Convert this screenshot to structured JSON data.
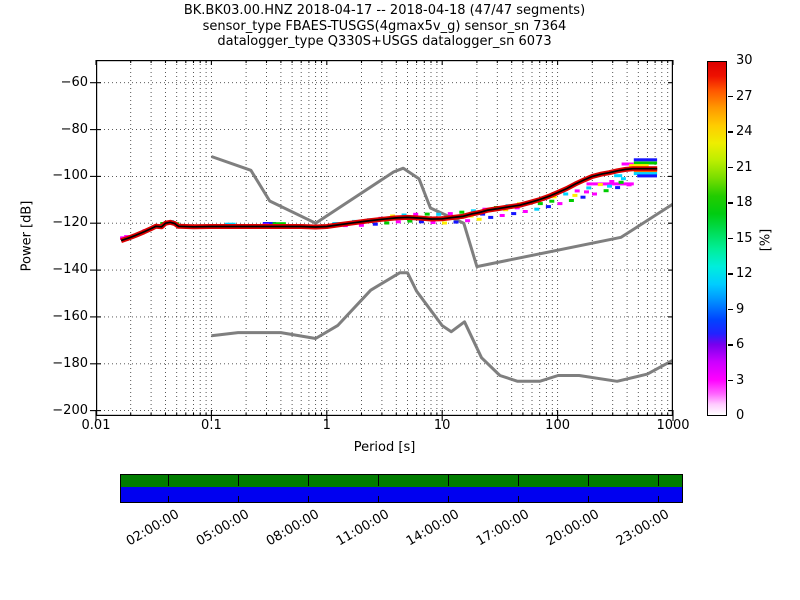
{
  "title": {
    "line1": "BK.BK03.00.HNZ   2018-04-17 -- 2018-04-18  (47/47 segments)",
    "line2": "sensor_type FBAES-TUSGS(4gmax5v_g) sensor_sn 7364",
    "line3": "datalogger_type Q330S+USGS datalogger_sn 6073"
  },
  "chart_data": {
    "type": "heatmap",
    "subtype": "obspy-ppsd-probability-histogram",
    "xlabel": "Period [s]",
    "ylabel": "Power [dB]",
    "x_scale": "log",
    "x_range": [
      0.01,
      1000
    ],
    "y_range_db": [
      -200,
      -60
    ],
    "grid": "dotted-major-and-log-minor",
    "x_ticks": {
      "values": [
        0.01,
        0.1,
        1,
        10,
        100,
        1000
      ],
      "labels": [
        "0.01",
        "0.1",
        "1",
        "10",
        "100",
        "1000"
      ]
    },
    "y_ticks": {
      "values": [
        -60,
        -80,
        -100,
        -120,
        -140,
        -160,
        -180,
        -200
      ],
      "labels": [
        "−60",
        "−80",
        "−100",
        "−120",
        "−140",
        "−160",
        "−180",
        "−200"
      ]
    },
    "colorbar": {
      "label": "[%]",
      "min": 0,
      "max": 30,
      "tick_values": [
        0,
        3,
        6,
        9,
        12,
        15,
        18,
        21,
        24,
        27,
        30
      ],
      "tick_labels": [
        "0",
        "3",
        "6",
        "9",
        "12",
        "15",
        "18",
        "21",
        "24",
        "27",
        "30"
      ],
      "gradient_stops": [
        [
          0,
          "#ffffff"
        ],
        [
          3,
          "#ffccff"
        ],
        [
          6,
          "#ff66ff"
        ],
        [
          10,
          "#ff00ff"
        ],
        [
          15,
          "#cc00ff"
        ],
        [
          20,
          "#7700ee"
        ],
        [
          23,
          "#2222ff"
        ],
        [
          27,
          "#0044ff"
        ],
        [
          33,
          "#0099ff"
        ],
        [
          37,
          "#00ccff"
        ],
        [
          42,
          "#00eedd"
        ],
        [
          47,
          "#00ee99"
        ],
        [
          52,
          "#00dd55"
        ],
        [
          57,
          "#00cc11"
        ],
        [
          62,
          "#22cc00"
        ],
        [
          67,
          "#77dd00"
        ],
        [
          72,
          "#bbee00"
        ],
        [
          77,
          "#eeee00"
        ],
        [
          82,
          "#ffcc00"
        ],
        [
          87,
          "#ff9900"
        ],
        [
          92,
          "#ff5500"
        ],
        [
          96,
          "#ee1100"
        ],
        [
          100,
          "#dd0000"
        ]
      ]
    },
    "noise_models": {
      "color": "#7f7f7f",
      "line_width": 3,
      "nhnm": [
        [
          0.1,
          -91.5
        ],
        [
          0.22,
          -97.4
        ],
        [
          0.32,
          -110.5
        ],
        [
          0.8,
          -120.0
        ],
        [
          3.8,
          -98.1
        ],
        [
          4.6,
          -96.5
        ],
        [
          6.3,
          -101.0
        ],
        [
          7.9,
          -113.5
        ],
        [
          15.4,
          -120.0
        ],
        [
          20,
          -138.5
        ],
        [
          354.8,
          -126.0
        ],
        [
          1000,
          -111.8
        ]
      ],
      "nlnm": [
        [
          0.1,
          -168.0
        ],
        [
          0.17,
          -166.7
        ],
        [
          0.4,
          -166.7
        ],
        [
          0.8,
          -169.2
        ],
        [
          1.24,
          -163.7
        ],
        [
          2.4,
          -148.6
        ],
        [
          4.3,
          -141.1
        ],
        [
          5,
          -141.1
        ],
        [
          6,
          -149.0
        ],
        [
          10,
          -163.7
        ],
        [
          12,
          -166.3
        ],
        [
          15.6,
          -162.1
        ],
        [
          21.9,
          -177.4
        ],
        [
          31.6,
          -185.0
        ],
        [
          45,
          -187.5
        ],
        [
          70,
          -187.5
        ],
        [
          101,
          -185.0
        ],
        [
          154,
          -185.0
        ],
        [
          328,
          -187.5
        ],
        [
          600,
          -184.4
        ],
        [
          1000,
          -178.5
        ]
      ]
    },
    "psd": {
      "mode_color": "#000000",
      "core_color": "#dd0000",
      "mode_points": [
        [
          0.0165,
          -127.4
        ],
        [
          0.019,
          -126.4
        ],
        [
          0.022,
          -125.2
        ],
        [
          0.026,
          -123.7
        ],
        [
          0.03,
          -122.3
        ],
        [
          0.033,
          -121.3
        ],
        [
          0.037,
          -121.5
        ],
        [
          0.04,
          -120.0
        ],
        [
          0.044,
          -119.6
        ],
        [
          0.048,
          -120.1
        ],
        [
          0.052,
          -121.3
        ],
        [
          0.07,
          -121.5
        ],
        [
          0.1,
          -121.4
        ],
        [
          0.3,
          -121.4
        ],
        [
          0.6,
          -121.4
        ],
        [
          0.8,
          -121.6
        ],
        [
          1.0,
          -121.4
        ],
        [
          1.3,
          -120.6
        ],
        [
          1.7,
          -119.8
        ],
        [
          2.2,
          -119.1
        ],
        [
          3.0,
          -118.3
        ],
        [
          4.0,
          -117.7
        ],
        [
          5.0,
          -117.5
        ],
        [
          6.5,
          -117.8
        ],
        [
          8.0,
          -118.2
        ],
        [
          10,
          -118.1
        ],
        [
          12,
          -117.6
        ],
        [
          15,
          -117.1
        ],
        [
          18,
          -116.0
        ],
        [
          21,
          -115.4
        ],
        [
          25,
          -114.4
        ],
        [
          31,
          -113.7
        ],
        [
          38,
          -113.0
        ],
        [
          47,
          -112.3
        ],
        [
          57,
          -111.2
        ],
        [
          70,
          -109.9
        ],
        [
          85,
          -108.4
        ],
        [
          100,
          -106.9
        ],
        [
          120,
          -105.2
        ],
        [
          143,
          -103.2
        ],
        [
          170,
          -101.5
        ],
        [
          200,
          -100.0
        ],
        [
          240,
          -99.0
        ],
        [
          280,
          -98.4
        ],
        [
          330,
          -97.6
        ],
        [
          390,
          -97.0
        ],
        [
          450,
          -96.7
        ],
        [
          730,
          -96.7
        ]
      ]
    },
    "fringe": {
      "palette": {
        "m": "#ff00ff",
        "c": "#00d5ff",
        "b": "#1414ff",
        "g": "#00cc00",
        "y": "#ffee00",
        "o": "#ff8800",
        "r": "#e60000"
      },
      "segments": [
        [
          "m",
          -1.79,
          -1.71,
          -126.2
        ],
        [
          "c",
          -0.88,
          -0.79,
          -120.4
        ],
        [
          "b",
          -0.555,
          -0.44,
          -120.1
        ],
        [
          "m",
          -0.56,
          -0.5,
          -120.8
        ],
        [
          "g",
          -0.47,
          -0.355,
          -120.2
        ],
        [
          "c",
          0.05,
          0.13,
          -120.1
        ],
        [
          "m",
          2.25,
          2.66,
          -103.2
        ],
        [
          "m",
          2.555,
          2.66,
          -94.7
        ],
        [
          "b",
          2.66,
          2.862,
          -92.9
        ],
        [
          "g",
          2.66,
          2.862,
          -94.3
        ],
        [
          "y",
          2.62,
          2.79,
          -95.4
        ],
        [
          "o",
          2.66,
          2.862,
          -97.7
        ],
        [
          "c",
          2.66,
          2.862,
          -98.8
        ],
        [
          "b",
          2.69,
          2.862,
          -99.8
        ],
        [
          "c",
          2.49,
          2.56,
          -99.7
        ]
      ],
      "cells": [
        [
          -1.77,
          -126.5,
          "m"
        ],
        [
          -1.735,
          -125.7,
          "m"
        ],
        [
          -1.575,
          -123.2,
          "m"
        ],
        [
          -1.42,
          -120.1,
          "g"
        ],
        [
          -1.38,
          -119.5,
          "c"
        ],
        [
          -1.345,
          -119.3,
          "c"
        ],
        [
          -1.3,
          -120.2,
          "g"
        ],
        [
          -0.86,
          -120.6,
          "c"
        ],
        [
          -0.52,
          -120.9,
          "m"
        ],
        [
          -0.435,
          -120.4,
          "g"
        ],
        [
          0.1,
          -120.4,
          "c"
        ],
        [
          0.16,
          -121.0,
          "m"
        ],
        [
          0.24,
          -119.2,
          "c"
        ],
        [
          0.3,
          -120.9,
          "m"
        ],
        [
          0.37,
          -118.5,
          "c"
        ],
        [
          0.42,
          -120.4,
          "b"
        ],
        [
          0.47,
          -117.9,
          "m"
        ],
        [
          0.52,
          -119.9,
          "g"
        ],
        [
          0.57,
          -116.9,
          "y"
        ],
        [
          0.62,
          -119.4,
          "m"
        ],
        [
          0.67,
          -116.5,
          "c"
        ],
        [
          0.72,
          -119.1,
          "g"
        ],
        [
          0.77,
          -116.2,
          "m"
        ],
        [
          0.82,
          -119.4,
          "b"
        ],
        [
          0.87,
          -116.1,
          "g"
        ],
        [
          0.9,
          -117.8,
          "c"
        ],
        [
          0.92,
          -119.7,
          "m"
        ],
        [
          0.97,
          -116.2,
          "c"
        ],
        [
          1.02,
          -119.9,
          "y"
        ],
        [
          1.05,
          -117.5,
          "g"
        ],
        [
          1.07,
          -115.9,
          "m"
        ],
        [
          1.12,
          -119.5,
          "b"
        ],
        [
          1.17,
          -115.3,
          "g"
        ],
        [
          1.22,
          -118.9,
          "m"
        ],
        [
          1.25,
          -116.9,
          "y"
        ],
        [
          1.27,
          -114.7,
          "c"
        ],
        [
          1.32,
          -118.3,
          "y"
        ],
        [
          1.35,
          -116.1,
          "b"
        ],
        [
          1.37,
          -114.0,
          "m"
        ],
        [
          1.42,
          -117.5,
          "b"
        ],
        [
          1.47,
          -113.3,
          "g"
        ],
        [
          1.52,
          -116.7,
          "m"
        ],
        [
          1.55,
          -114.2,
          "y"
        ],
        [
          1.57,
          -112.5,
          "c"
        ],
        [
          1.62,
          -115.9,
          "b"
        ],
        [
          1.65,
          -113.4,
          "m"
        ],
        [
          1.67,
          -111.7,
          "y"
        ],
        [
          1.72,
          -115.0,
          "m"
        ],
        [
          1.77,
          -110.8,
          "g"
        ],
        [
          1.82,
          -114.0,
          "c"
        ],
        [
          1.85,
          -111.6,
          "g"
        ],
        [
          1.87,
          -109.8,
          "m"
        ],
        [
          1.92,
          -112.9,
          "b"
        ],
        [
          1.95,
          -110.6,
          "g"
        ],
        [
          1.97,
          -108.7,
          "y"
        ],
        [
          2.02,
          -111.6,
          "m"
        ],
        [
          2.07,
          -107.5,
          "c"
        ],
        [
          2.12,
          -110.3,
          "g"
        ],
        [
          2.15,
          -108.1,
          "y"
        ],
        [
          2.17,
          -106.2,
          "m"
        ],
        [
          2.22,
          -108.9,
          "b"
        ],
        [
          2.25,
          -106.6,
          "m"
        ],
        [
          2.27,
          -104.9,
          "c"
        ],
        [
          2.32,
          -107.5,
          "m"
        ],
        [
          2.37,
          -103.5,
          "y"
        ],
        [
          2.42,
          -106.1,
          "g"
        ],
        [
          2.45,
          -104.2,
          "c"
        ],
        [
          2.47,
          -102.2,
          "m"
        ],
        [
          2.52,
          -104.8,
          "b"
        ],
        [
          2.55,
          -102.5,
          "g"
        ],
        [
          2.57,
          -101.0,
          "c"
        ],
        [
          2.62,
          -103.6,
          "m"
        ]
      ]
    },
    "availability": {
      "green_color": "#007c00",
      "blue_color": "#0000f0",
      "total_hours": 24,
      "tick_hours": [
        2,
        5,
        8,
        11,
        14,
        17,
        20,
        23
      ],
      "tick_labels": [
        "02:00:00",
        "05:00:00",
        "08:00:00",
        "11:00:00",
        "14:00:00",
        "17:00:00",
        "20:00:00",
        "23:00:00"
      ]
    }
  }
}
